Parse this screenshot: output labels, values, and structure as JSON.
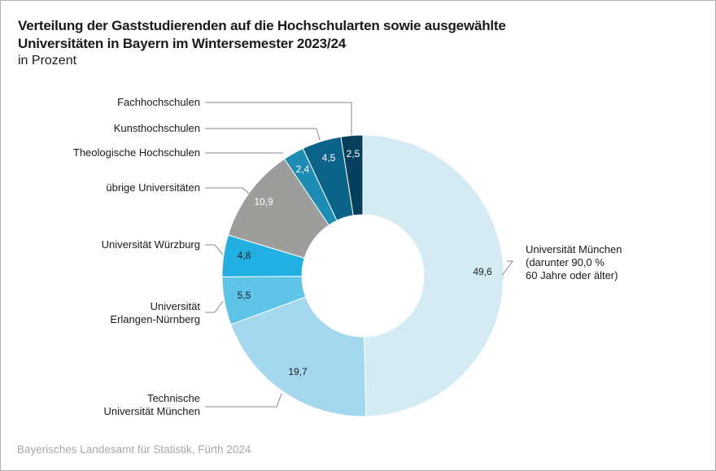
{
  "chart_data": {
    "type": "pie",
    "variant": "donut",
    "title": "Verteilung der Gaststudierenden auf die Hochschularten sowie ausgewählte Universitäten in Bayern im Wintersemester 2023/24",
    "title_lines": [
      "Verteilung der Gaststudierenden auf die Hochschularten sowie ausgewählte",
      "Universitäten in Bayern im Wintersemester 2023/24"
    ],
    "subtitle": "in Prozent",
    "unit": "%",
    "slices": [
      {
        "label": "Universität München (darunter 90,0 % 60 Jahre oder älter)",
        "label_lines": [
          "Universität München",
          "(darunter 90,0 %",
          "60 Jahre oder älter)"
        ],
        "value": 49.6,
        "value_label": "49,6",
        "color": "#d4ebf3",
        "text_color": "#1a1a1a"
      },
      {
        "label": "Technische Universität München",
        "label_lines": [
          "Technische",
          "Universität München"
        ],
        "value": 19.7,
        "value_label": "19,7",
        "color": "#a3d8ee",
        "text_color": "#1a1a1a"
      },
      {
        "label": "Universität Erlangen-Nürnberg",
        "label_lines": [
          "Universität",
          "Erlangen-Nürnberg"
        ],
        "value": 5.5,
        "value_label": "5,5",
        "color": "#5ec4e8",
        "text_color": "#1a1a1a"
      },
      {
        "label": "Universität Würzburg",
        "label_lines": [
          "Universität Würzburg"
        ],
        "value": 4.8,
        "value_label": "4,8",
        "color": "#22b0e2",
        "text_color": "#1a1a1a"
      },
      {
        "label": "übrige Universitäten",
        "label_lines": [
          "übrige Universitäten"
        ],
        "value": 10.9,
        "value_label": "10,9",
        "color": "#9d9d9c",
        "text_color": "#ffffff"
      },
      {
        "label": "Theologische Hochschulen",
        "label_lines": [
          "Theologische Hochschulen"
        ],
        "value": 2.4,
        "value_label": "2,4",
        "color": "#1d8db5",
        "text_color": "#ffffff"
      },
      {
        "label": "Kunsthochschulen",
        "label_lines": [
          "Kunsthochschulen"
        ],
        "value": 4.5,
        "value_label": "4,5",
        "color": "#0c6389",
        "text_color": "#ffffff"
      },
      {
        "label": "Fachhochschulen",
        "label_lines": [
          "Fachhochschulen"
        ],
        "value": 2.5,
        "value_label": "2,5",
        "color": "#06405d",
        "text_color": "#ffffff"
      }
    ],
    "start": "12 o'clock",
    "direction": "clockwise",
    "legend": "none (direct labels with leader lines)"
  },
  "footer": {
    "source": "Bayerisches Landesamt für Statistik, Fürth 2024"
  }
}
